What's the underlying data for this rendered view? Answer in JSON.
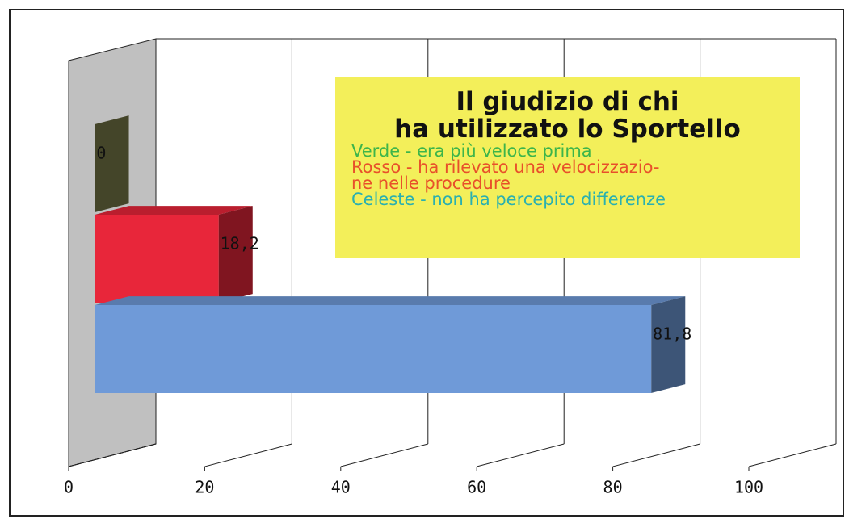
{
  "chart_data": {
    "type": "bar",
    "orientation": "horizontal",
    "title": "Il giudizio di chi\nha utilizzato lo Sportello",
    "categories": [
      null
    ],
    "series": [
      {
        "name": "Verde - era più veloce prima",
        "color": "#7b7d4a",
        "values": [
          0
        ],
        "value_labels": [
          "0"
        ]
      },
      {
        "name": "Rosso - ha rilevato una velocizzazio-\nne nelle procedure",
        "color": "#e8263a",
        "values": [
          18.2
        ],
        "value_labels": [
          "18,2"
        ]
      },
      {
        "name": "Celeste - non ha percepito differenze",
        "color": "#6f9ad8",
        "values": [
          81.8
        ],
        "value_labels": [
          "81,8"
        ]
      }
    ],
    "legend_colors": [
      "#3db54a",
      "#e8502a",
      "#2ab0b0"
    ],
    "xlim": [
      0,
      100
    ],
    "xticks": [
      0,
      20,
      40,
      60,
      80,
      100
    ],
    "grid": true
  }
}
